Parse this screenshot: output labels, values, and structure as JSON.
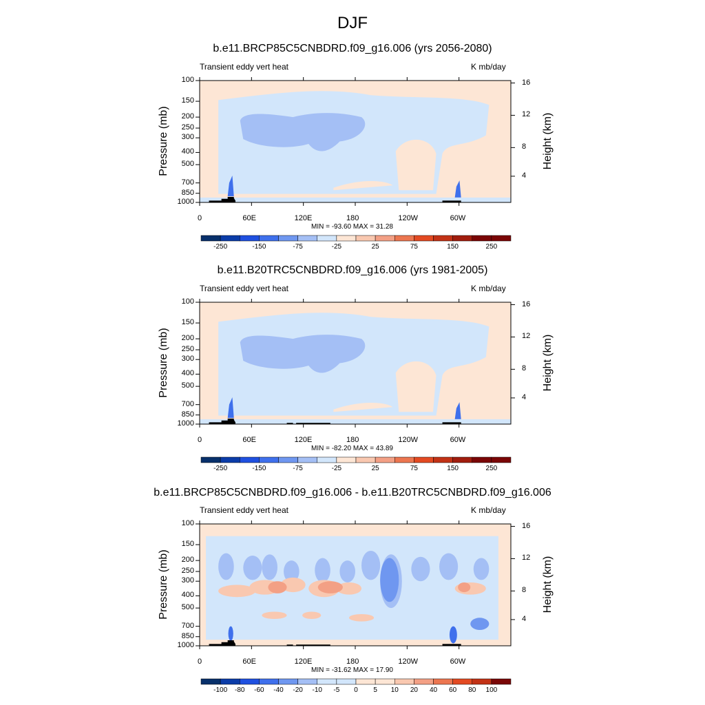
{
  "page_title": "DJF",
  "colors": {
    "neg": [
      "#08306b",
      "#0b3ca8",
      "#1f50e0",
      "#3f70ec",
      "#6f97f0",
      "#a4bff5",
      "#d2e6fb"
    ],
    "pos": [
      "#fde6d5",
      "#f9c8b0",
      "#f3a085",
      "#ec7650",
      "#e34a22",
      "#c23216",
      "#a11d0e",
      "#7a0606"
    ],
    "land": "#000000"
  },
  "chart_data": [
    {
      "type": "heatmap",
      "title": "b.e11.BRCP85C5CNBDRD.f09_g16.006 (yrs 2056-2080)",
      "left_label": "Transient eddy vert heat",
      "right_label": "K mb/day",
      "ylabel": "Pressure (mb)",
      "y2label": "Height (km)",
      "x_ticks": [
        "0",
        "60E",
        "120E",
        "180",
        "120W",
        "60W"
      ],
      "y_ticks": [
        "100",
        "150",
        "200",
        "250",
        "300",
        "400",
        "500",
        "700",
        "850",
        "1000"
      ],
      "y2_ticks": [
        "16",
        "12",
        "8",
        "4"
      ],
      "min_max": "MIN = -93.60  MAX =  31.28",
      "colorbar_labels": [
        "-250",
        "-150",
        "-75",
        "-25",
        "25",
        "75",
        "150",
        "250"
      ]
    },
    {
      "type": "heatmap",
      "title": "b.e11.B20TRC5CNBDRD.f09_g16.006 (yrs 1981-2005)",
      "left_label": "Transient eddy vert heat",
      "right_label": "K mb/day",
      "ylabel": "Pressure (mb)",
      "y2label": "Height (km)",
      "x_ticks": [
        "0",
        "60E",
        "120E",
        "180",
        "120W",
        "60W"
      ],
      "y_ticks": [
        "100",
        "150",
        "200",
        "250",
        "300",
        "400",
        "500",
        "700",
        "850",
        "1000"
      ],
      "y2_ticks": [
        "16",
        "12",
        "8",
        "4"
      ],
      "min_max": "MIN = -82.20  MAX =  43.89",
      "colorbar_labels": [
        "-250",
        "-150",
        "-75",
        "-25",
        "25",
        "75",
        "150",
        "250"
      ]
    },
    {
      "type": "heatmap",
      "title": "b.e11.BRCP85C5CNBDRD.f09_g16.006 - b.e11.B20TRC5CNBDRD.f09_g16.006",
      "left_label": "Transient eddy vert heat",
      "right_label": "K mb/day",
      "ylabel": "Pressure (mb)",
      "y2label": "Height (km)",
      "x_ticks": [
        "0",
        "60E",
        "120E",
        "180",
        "120W",
        "60W"
      ],
      "y_ticks": [
        "100",
        "150",
        "200",
        "250",
        "300",
        "400",
        "500",
        "700",
        "850",
        "1000"
      ],
      "y2_ticks": [
        "16",
        "12",
        "8",
        "4"
      ],
      "min_max": "MIN = -31.62  MAX =  17.90",
      "colorbar_labels": [
        "-100",
        "-80",
        "-60",
        "-40",
        "-20",
        "-10",
        "-5",
        "0",
        "5",
        "10",
        "20",
        "40",
        "60",
        "80",
        "100"
      ]
    }
  ]
}
